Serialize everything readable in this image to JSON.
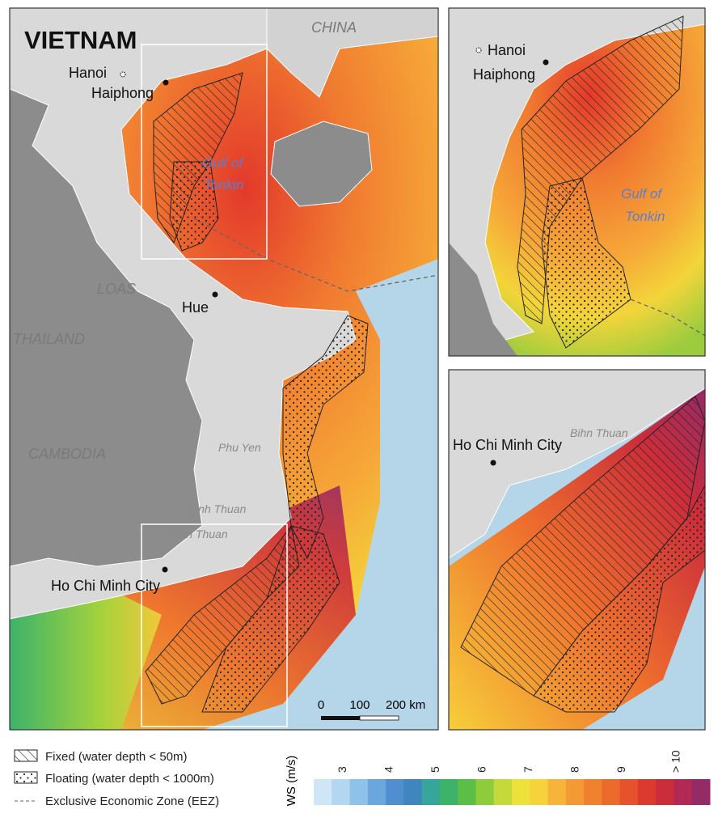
{
  "main_map": {
    "title": "VIETNAM",
    "countries": [
      "CHINA",
      "LOAS",
      "THAILAND",
      "CAMBODIA"
    ],
    "cities": [
      "Hanoi",
      "Haiphong",
      "Hue",
      "Ho Chi Minh City"
    ],
    "provinces": [
      "Phu Yen",
      "Ninh Thuan",
      "Bihn Thuan"
    ],
    "gulf": [
      "Gulf of",
      "Tonkin"
    ],
    "scale_bar": [
      "0",
      "100",
      "200 km"
    ]
  },
  "inset_north": {
    "cities": [
      "Hanoi",
      "Haiphong"
    ],
    "gulf": [
      "Gulf of",
      "Tonkin"
    ]
  },
  "inset_south": {
    "cities": [
      "Ho Chi Minh City"
    ],
    "provinces": [
      "Bihn Thuan"
    ]
  },
  "legend": [
    "Fixed (water depth < 50m)",
    "Floating (water depth < 1000m)",
    "Exclusive Economic Zone (EEZ)"
  ],
  "colorbar": {
    "label": "WS (m/s)",
    "ticks": [
      "3",
      "4",
      "5",
      "6",
      "7",
      "8",
      "9",
      "> 10"
    ],
    "colors": [
      "#cfe6f7",
      "#b3d6f1",
      "#8fc2ea",
      "#6aa7de",
      "#4f8fd0",
      "#3f86bf",
      "#36a59a",
      "#3db36a",
      "#5cbf45",
      "#8fcc3c",
      "#c4d93a",
      "#ece23a",
      "#f7d23a",
      "#f6b53a",
      "#f39a34",
      "#f0822f",
      "#ec6a2c",
      "#e5522b",
      "#dc3a2c",
      "#cc2d3a",
      "#b02a55",
      "#942a66"
    ]
  }
}
